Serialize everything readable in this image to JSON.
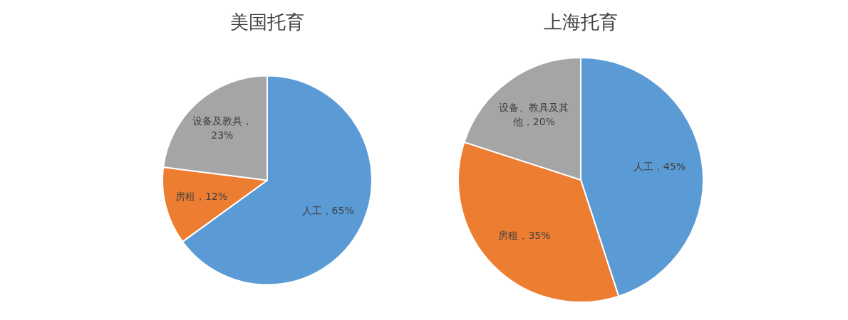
{
  "chart_data": [
    {
      "type": "pie",
      "title": "美国托育",
      "categories": [
        "人工",
        "房租",
        "设备及教具"
      ],
      "values": [
        65,
        12,
        23
      ],
      "colors": [
        "#5b9bd5",
        "#ed7d31",
        "#a5a5a5"
      ],
      "value_labels": [
        "，65%",
        "，12%",
        "，23%"
      ],
      "legend": false
    },
    {
      "type": "pie",
      "title": "上海托育",
      "categories": [
        "人工",
        "房租",
        "设备、教具及其他"
      ],
      "values": [
        45,
        35,
        20
      ],
      "colors": [
        "#5b9bd5",
        "#ed7d31",
        "#a5a5a5"
      ],
      "value_labels": [
        "，45%",
        "，35%",
        "，20%"
      ],
      "legend": false
    }
  ]
}
